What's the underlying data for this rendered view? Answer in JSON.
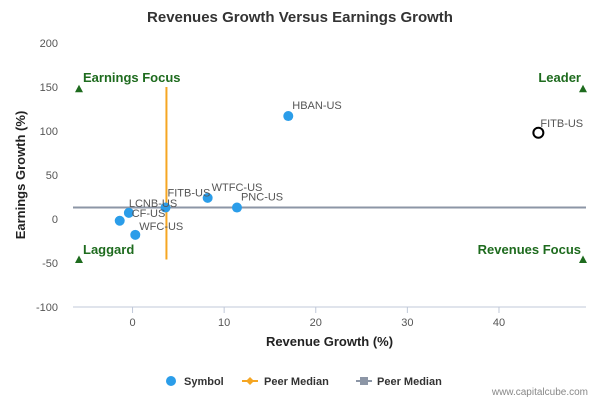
{
  "chart_data": {
    "type": "scatter",
    "title": "Revenues Growth Versus Earnings Growth",
    "xlabel": "Revenue Growth (%)",
    "ylabel": "Earnings Growth (%)",
    "xlim": [
      -6.5,
      49.5
    ],
    "ylim": [
      -100,
      200
    ],
    "x_ticks": [
      0,
      10,
      20,
      30,
      40
    ],
    "y_ticks": [
      -100,
      -50,
      0,
      50,
      100,
      150,
      200
    ],
    "grid": false,
    "series": [
      {
        "name": "Symbol",
        "points": [
          {
            "label": "HBAN-US",
            "x": 17.0,
            "y": 117
          },
          {
            "label": "FITB-US",
            "x": 44.3,
            "y": 98,
            "highlight": true
          },
          {
            "label": "WTFC-US",
            "x": 8.2,
            "y": 24
          },
          {
            "label": "PNC-US",
            "x": 11.4,
            "y": 13
          },
          {
            "label": "FITB-US",
            "x": 3.6,
            "y": 13
          },
          {
            "label": "LCNB-US",
            "x": -0.4,
            "y": 7
          },
          {
            "label": "CF-US",
            "x": -1.4,
            "y": -2
          },
          {
            "label": "WFC-US",
            "x": 0.3,
            "y": -18
          }
        ]
      }
    ],
    "peer_median": {
      "name": "Peer Median",
      "x": 3.7,
      "y": 13
    },
    "quadrants": {
      "top_left": "Earnings Focus",
      "top_right": "Leader",
      "bottom_left": "Laggard",
      "bottom_right": "Revenues Focus"
    },
    "legend": {
      "position": "bottom",
      "items": [
        "Symbol",
        "Peer Median",
        "Peer Median"
      ]
    },
    "colors": {
      "point": "#2b9de9",
      "highlight_ring": "#000000",
      "vertical_median": "#f5a623",
      "horizontal_median": "#8c96a6",
      "quadrant": "#1e6b1e",
      "axis": "#c0c8d8"
    }
  },
  "credit": "www.capitalcube.com"
}
